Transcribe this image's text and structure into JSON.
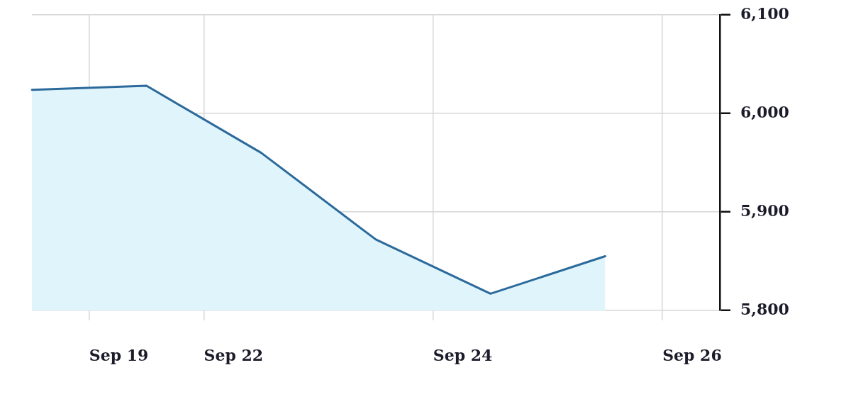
{
  "chart_data": {
    "type": "area",
    "categories": [
      null,
      "Sep 19",
      "Sep 22",
      null,
      "Sep 24",
      null,
      "Sep 26"
    ],
    "values": [
      6024,
      6028,
      5960,
      5872,
      5817,
      5855,
      null
    ],
    "color": "#2b6a9b",
    "ylim": [
      5800,
      6100
    ],
    "yticks": [
      {
        "value": 5800,
        "label": "5,800"
      },
      {
        "value": 5900,
        "label": "5,900"
      },
      {
        "value": 6000,
        "label": "6,000"
      },
      {
        "value": 6100,
        "label": "6,100"
      }
    ],
    "grid": true
  }
}
